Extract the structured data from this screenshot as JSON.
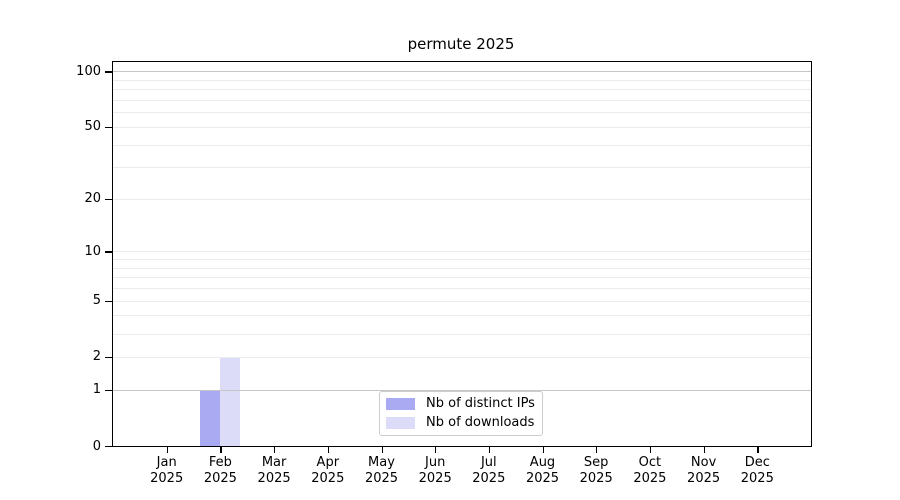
{
  "chart_data": {
    "type": "bar",
    "title": "permute 2025",
    "year": "2025",
    "categories": [
      "Jan",
      "Feb",
      "Mar",
      "Apr",
      "May",
      "Jun",
      "Jul",
      "Aug",
      "Sep",
      "Oct",
      "Nov",
      "Dec"
    ],
    "series": [
      {
        "name": "Nb of distinct IPs",
        "color": "#aaaaf2",
        "values": [
          0,
          1,
          0,
          0,
          0,
          0,
          0,
          0,
          0,
          0,
          0,
          0
        ]
      },
      {
        "name": "Nb of downloads",
        "color": "#dcdcf8",
        "values": [
          0,
          2,
          0,
          0,
          0,
          0,
          0,
          0,
          0,
          0,
          0,
          0
        ]
      }
    ],
    "yscale": "log10(1+v)",
    "ylim": [
      0,
      100
    ],
    "yticks": [
      0,
      1,
      2,
      5,
      10,
      20,
      50,
      100
    ],
    "grid_minor": [
      2,
      3,
      4,
      5,
      6,
      7,
      8,
      9,
      10,
      20,
      30,
      40,
      50,
      60,
      70,
      80,
      90
    ],
    "grid_major": [
      1,
      100
    ],
    "legend_position": "lower center",
    "colors": {
      "grid_minor": "#ebebeb",
      "grid_major": "#c6c6c6",
      "axis": "#000000",
      "legend_border": "#cccccc",
      "background": "#ffffff"
    }
  }
}
